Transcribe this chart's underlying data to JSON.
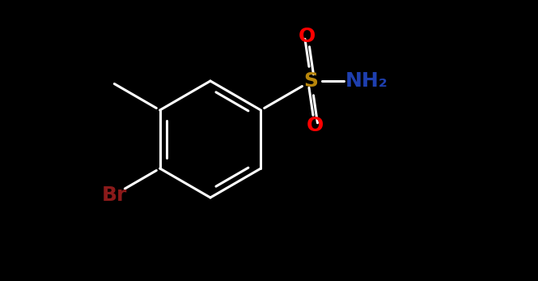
{
  "bg_color": "#000000",
  "bond_color": "#ffffff",
  "bond_width": 2.2,
  "S_color": "#b8860b",
  "O_color": "#ff0000",
  "NH2_color": "#1e3faf",
  "Br_color": "#8b1a1a",
  "label_S": "S",
  "label_O": "O",
  "label_NH2": "NH₂",
  "label_Br": "Br",
  "font_size_atoms": 18,
  "font_size_NH2": 18,
  "font_size_Br": 18
}
